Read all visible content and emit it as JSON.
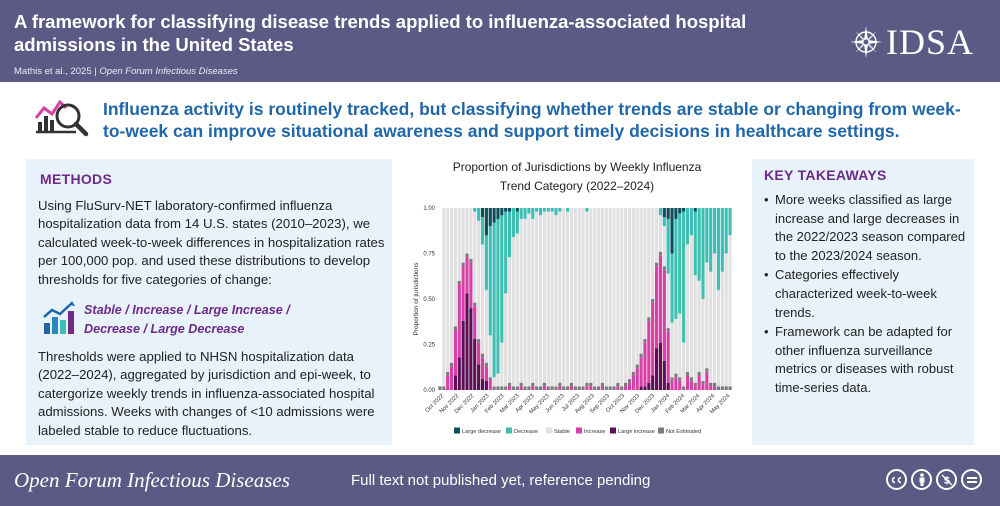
{
  "header": {
    "title": "A framework for classifying disease trends applied to influenza-associated hospital admissions in the United States",
    "authors": "Mathis et al., 2025",
    "separator": "|",
    "journal": "Open Forum Infectious Diseases",
    "logo_text": "IDSA"
  },
  "headline": "Influenza activity is routinely tracked, but classifying whether trends are stable or changing from week-to-week can improve situational awareness and support timely decisions in healthcare settings.",
  "methods": {
    "title": "METHODS",
    "paragraph1": "Using FluSurv-NET laboratory-confirmed influenza hospitalization data from 14 U.S. states (2010–2023), we calculated week-to-week differences in hospitalization rates per 100,000 pop. and used these distributions to develop thresholds for five categories of change:",
    "categories_line1": "Stable / Increase / Large Increase /",
    "categories_line2": "Decrease / Large Decrease",
    "paragraph2": "Thresholds were applied to NHSN hospitalization data (2022–2024), aggregated by jurisdiction and epi-week, to catergorize weekly trends in influenza-associated hospital admissions.  Weeks with changes of <10 admissions were labeled stable to reduce fluctuations."
  },
  "takeaways": {
    "title": "KEY TAKEAWAYS",
    "items": [
      "More weeks classified as large increase and large decreases in the 2022/2023 season compared to the 2023/2024 season.",
      "Categories effectively characterized week-to-week trends.",
      "Framework can be adapted for other influenza surveillance metrics or diseases with robust time-series data."
    ]
  },
  "chart_data": {
    "type": "bar",
    "stacked": true,
    "title_line1": "Proportion of Jurisdictions by Weekly Influenza",
    "title_line2": "Trend Category (2022–2024)",
    "ylabel": "Proportion of jurisdictions",
    "ylim": [
      0,
      1
    ],
    "yticks": [
      "0.00",
      "0.25",
      "0.50",
      "0.75",
      "1.00"
    ],
    "x_ticks": [
      "Oct 2022",
      "Nov 2022",
      "Dec 2022",
      "Jan 2023",
      "Feb 2023",
      "Mar 2023",
      "Apr 2023",
      "May 2023",
      "Jun 2023",
      "Jul 2023",
      "Aug 2023",
      "Sep 2023",
      "Oct 2023",
      "Nov 2023",
      "Dec 2023",
      "Jan 2024",
      "Feb 2024",
      "Mar 2024",
      "Apr 2024",
      "May 2024"
    ],
    "legend_position": "bottom",
    "series": [
      {
        "name": "Large decrease",
        "color": "#0b4f5c"
      },
      {
        "name": "Decrease",
        "color": "#3fbfb4"
      },
      {
        "name": "Stable",
        "color": "#e1e1e1"
      },
      {
        "name": "Increase",
        "color": "#d63fa5"
      },
      {
        "name": "Large increase",
        "color": "#5c0f55"
      },
      {
        "name": "Not Estimated",
        "color": "#7a7a7a"
      }
    ],
    "weeks": [
      [
        0,
        0,
        0,
        0,
        0,
        0.02
      ],
      [
        0,
        0,
        0.98,
        0,
        0,
        0.02
      ],
      [
        0,
        0,
        0.9,
        0.08,
        0,
        0.02
      ],
      [
        0,
        0,
        0.85,
        0.13,
        0,
        0.02
      ],
      [
        0,
        0,
        0.65,
        0.25,
        0.08,
        0.02
      ],
      [
        0,
        0,
        0.4,
        0.4,
        0.18,
        0.02
      ],
      [
        0,
        0,
        0.3,
        0.3,
        0.38,
        0.02
      ],
      [
        0,
        0,
        0.25,
        0.2,
        0.53,
        0.02
      ],
      [
        0,
        0,
        0.28,
        0.25,
        0.45,
        0.02
      ],
      [
        0,
        0.02,
        0.5,
        0.18,
        0.28,
        0.02
      ],
      [
        0,
        0.07,
        0.65,
        0.12,
        0.14,
        0.02
      ],
      [
        0.05,
        0.15,
        0.6,
        0.12,
        0.06,
        0.02
      ],
      [
        0.15,
        0.3,
        0.4,
        0.08,
        0.05,
        0.02
      ],
      [
        0.1,
        0.6,
        0.23,
        0.05,
        0,
        0.02
      ],
      [
        0.08,
        0.85,
        0.05,
        0,
        0,
        0.02
      ],
      [
        0.06,
        0.85,
        0.07,
        0,
        0,
        0.02
      ],
      [
        0.04,
        0.7,
        0.24,
        0,
        0,
        0.02
      ],
      [
        0.02,
        0.45,
        0.51,
        0,
        0,
        0.02
      ],
      [
        0.02,
        0.25,
        0.69,
        0.02,
        0,
        0.02
      ],
      [
        0,
        0.16,
        0.82,
        0,
        0,
        0.02
      ],
      [
        0.02,
        0.12,
        0.84,
        0,
        0,
        0.02
      ],
      [
        0,
        0.06,
        0.9,
        0.02,
        0,
        0.02
      ],
      [
        0,
        0.06,
        0.92,
        0,
        0,
        0.02
      ],
      [
        0,
        0.03,
        0.95,
        0,
        0,
        0.02
      ],
      [
        0,
        0.06,
        0.9,
        0.02,
        0,
        0.02
      ],
      [
        0,
        0.02,
        0.96,
        0,
        0,
        0.02
      ],
      [
        0,
        0.04,
        0.94,
        0,
        0,
        0.02
      ],
      [
        0,
        0.02,
        0.94,
        0.02,
        0,
        0.02
      ],
      [
        0,
        0.02,
        0.96,
        0,
        0,
        0.02
      ],
      [
        0,
        0.02,
        0.96,
        0,
        0,
        0.02
      ],
      [
        0,
        0.04,
        0.94,
        0,
        0,
        0.02
      ],
      [
        0,
        0.02,
        0.94,
        0.02,
        0,
        0.02
      ],
      [
        0,
        0,
        0.98,
        0,
        0,
        0.02
      ],
      [
        0,
        0.02,
        0.96,
        0,
        0,
        0.02
      ],
      [
        0,
        0,
        0.96,
        0.02,
        0,
        0.02
      ],
      [
        0,
        0,
        0.98,
        0,
        0,
        0.02
      ],
      [
        0,
        0,
        0.98,
        0,
        0,
        0.02
      ],
      [
        0,
        0,
        0.98,
        0,
        0,
        0.02
      ],
      [
        0,
        0.02,
        0.94,
        0.02,
        0,
        0.02
      ],
      [
        0,
        0,
        0.96,
        0.02,
        0,
        0.02
      ],
      [
        0,
        0,
        0.98,
        0,
        0,
        0.02
      ],
      [
        0,
        0,
        0.98,
        0,
        0,
        0.02
      ],
      [
        0,
        0,
        0.96,
        0.02,
        0,
        0.02
      ],
      [
        0,
        0,
        0.98,
        0,
        0,
        0.02
      ],
      [
        0,
        0,
        0.98,
        0,
        0,
        0.02
      ],
      [
        0,
        0,
        0.98,
        0,
        0,
        0.02
      ],
      [
        0,
        0,
        0.96,
        0.02,
        0,
        0.02
      ],
      [
        0,
        0,
        0.98,
        0,
        0,
        0.02
      ],
      [
        0,
        0,
        0.96,
        0.02,
        0,
        0.02
      ],
      [
        0,
        0,
        0.94,
        0.04,
        0,
        0.02
      ],
      [
        0,
        0,
        0.9,
        0.08,
        0,
        0.02
      ],
      [
        0,
        0,
        0.86,
        0.12,
        0,
        0.02
      ],
      [
        0,
        0,
        0.8,
        0.16,
        0.02,
        0.02
      ],
      [
        0,
        0,
        0.72,
        0.24,
        0.02,
        0.02
      ],
      [
        0,
        0,
        0.6,
        0.34,
        0.04,
        0.02
      ],
      [
        0,
        0,
        0.5,
        0.4,
        0.08,
        0.02
      ],
      [
        0,
        0,
        0.3,
        0.45,
        0.23,
        0.02
      ],
      [
        0,
        0.04,
        0.2,
        0.48,
        0.26,
        0.02
      ],
      [
        0.05,
        0.05,
        0.22,
        0.5,
        0.16,
        0.02
      ],
      [
        0.06,
        0.3,
        0.3,
        0.28,
        0.04,
        0.02
      ],
      [
        0.25,
        0.38,
        0.3,
        0.05,
        0,
        0.02
      ],
      [
        0.06,
        0.55,
        0.3,
        0.07,
        0,
        0.02
      ],
      [
        0.03,
        0.55,
        0.35,
        0.05,
        0,
        0.02
      ],
      [
        0.02,
        0.72,
        0.24,
        0,
        0,
        0.02
      ],
      [
        0,
        0.2,
        0.7,
        0.08,
        0,
        0.02
      ],
      [
        0,
        0.15,
        0.78,
        0.05,
        0,
        0.02
      ],
      [
        0.02,
        0.35,
        0.59,
        0.02,
        0,
        0.02
      ],
      [
        0,
        0.4,
        0.5,
        0.08,
        0,
        0.02
      ],
      [
        0,
        0.5,
        0.45,
        0.03,
        0,
        0.02
      ],
      [
        0,
        0.3,
        0.58,
        0.1,
        0,
        0.02
      ],
      [
        0,
        0.35,
        0.61,
        0.02,
        0,
        0.02
      ],
      [
        0,
        0.25,
        0.71,
        0.02,
        0,
        0.02
      ],
      [
        0,
        0.45,
        0.53,
        0,
        0,
        0.02
      ],
      [
        0,
        0.35,
        0.63,
        0,
        0,
        0.02
      ],
      [
        0,
        0.25,
        0.73,
        0,
        0,
        0.02
      ],
      [
        0,
        0.15,
        0.83,
        0,
        0,
        0.02
      ]
    ]
  },
  "footer": {
    "journal_name": "Open Forum Infectious Diseases",
    "status": "Full text not published yet, reference pending",
    "license_icons": [
      "cc",
      "by",
      "nc",
      "nd"
    ]
  }
}
